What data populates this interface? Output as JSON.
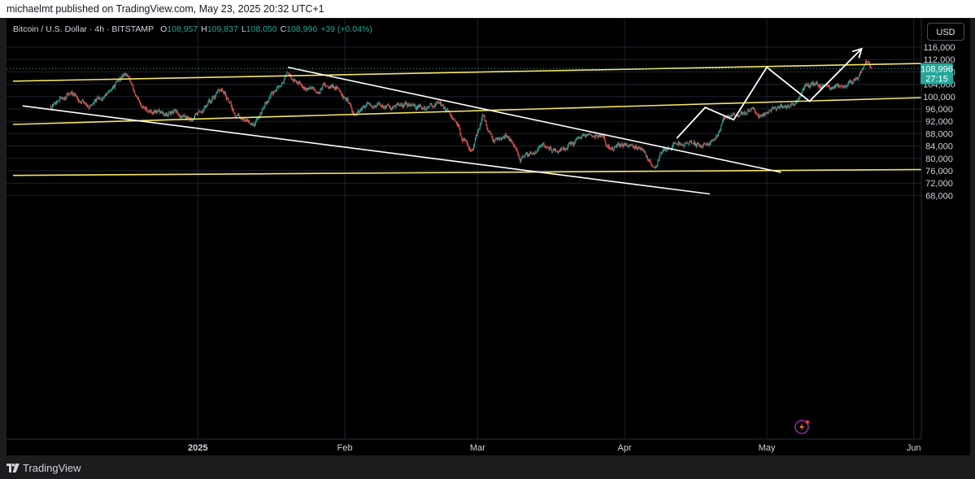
{
  "header": {
    "publisher_text": "michaelmt published on TradingView.com, May 23, 2025 20:32 UTC+1"
  },
  "legend": {
    "symbol": "Bitcoin / U.S. Dollar · 4h · BITSTAMP",
    "o_label": "O",
    "o_value": "108,957",
    "h_label": "H",
    "h_value": "109,837",
    "l_label": "L",
    "l_value": "108,050",
    "c_label": "C",
    "c_value": "108,996",
    "change": "+39 (+0.04%)"
  },
  "currency_button": "USD",
  "price_badge": {
    "price": "108,996",
    "countdown": "27:15"
  },
  "footer": {
    "brand": "TradingView"
  },
  "colors": {
    "up": "#26a69a",
    "down": "#ef5350",
    "trendline_yellow": "#f5e663",
    "trendline_white": "#ffffff",
    "badge": "#26a69a",
    "grid": "#1e222d"
  },
  "icons": {
    "brand_logo": "tradingview-logo-icon",
    "bolt": "bolt-icon"
  },
  "chart_data": {
    "type": "candlestick",
    "symbol": "BTCUSD",
    "timeframe": "4h",
    "y_ticks": [
      "116,000",
      "112,000",
      "108,000",
      "104,000",
      "100,000",
      "96,000",
      "92,000",
      "88,000",
      "84,000",
      "80,000",
      "76,000",
      "72,000",
      "68,000"
    ],
    "x_ticks": [
      "2025",
      "Feb",
      "Mar",
      "Apr",
      "May",
      "Jun"
    ],
    "ylim": [
      66000,
      118000
    ],
    "last_price": 108996,
    "price_path": [
      [
        "2024-12-01",
        97000
      ],
      [
        "2024-12-05",
        101500
      ],
      [
        "2024-12-09",
        97000
      ],
      [
        "2024-12-13",
        101000
      ],
      [
        "2024-12-17",
        107500
      ],
      [
        "2024-12-20",
        96000
      ],
      [
        "2024-12-24",
        95000
      ],
      [
        "2024-12-27",
        94500
      ],
      [
        "2024-12-31",
        93000
      ],
      [
        "2025-01-03",
        97500
      ],
      [
        "2025-01-06",
        102000
      ],
      [
        "2025-01-09",
        94000
      ],
      [
        "2025-01-13",
        91500
      ],
      [
        "2025-01-16",
        100000
      ],
      [
        "2025-01-20",
        107500
      ],
      [
        "2025-01-22",
        105000
      ],
      [
        "2025-01-26",
        102000
      ],
      [
        "2025-01-29",
        104500
      ],
      [
        "2025-02-01",
        100500
      ],
      [
        "2025-02-03",
        93500
      ],
      [
        "2025-02-06",
        97500
      ],
      [
        "2025-02-10",
        97000
      ],
      [
        "2025-02-14",
        97500
      ],
      [
        "2025-02-18",
        96000
      ],
      [
        "2025-02-21",
        98500
      ],
      [
        "2025-02-24",
        91500
      ],
      [
        "2025-02-26",
        86000
      ],
      [
        "2025-02-28",
        82500
      ],
      [
        "2025-03-02",
        94000
      ],
      [
        "2025-03-04",
        86000
      ],
      [
        "2025-03-07",
        88000
      ],
      [
        "2025-03-10",
        79500
      ],
      [
        "2025-03-14",
        84000
      ],
      [
        "2025-03-18",
        82500
      ],
      [
        "2025-03-21",
        84500
      ],
      [
        "2025-03-24",
        87000
      ],
      [
        "2025-03-27",
        87500
      ],
      [
        "2025-03-29",
        82500
      ],
      [
        "2025-04-02",
        85000
      ],
      [
        "2025-04-05",
        83000
      ],
      [
        "2025-04-07",
        76500
      ],
      [
        "2025-04-09",
        82500
      ],
      [
        "2025-04-12",
        85000
      ],
      [
        "2025-04-16",
        84500
      ],
      [
        "2025-04-20",
        85500
      ],
      [
        "2025-04-22",
        93000
      ],
      [
        "2025-04-26",
        95000
      ],
      [
        "2025-04-30",
        94500
      ],
      [
        "2025-05-03",
        96500
      ],
      [
        "2025-05-07",
        97000
      ],
      [
        "2025-05-09",
        103000
      ],
      [
        "2025-05-12",
        104000
      ],
      [
        "2025-05-15",
        103000
      ],
      [
        "2025-05-18",
        104500
      ],
      [
        "2025-05-20",
        106000
      ],
      [
        "2025-05-22",
        111500
      ],
      [
        "2025-05-23",
        108996
      ]
    ],
    "drawings": [
      {
        "name": "channel-top-yellow",
        "type": "trendline",
        "points": [
          [
            "2024-11-23",
            105000
          ],
          [
            "2025-06-12",
            111000
          ]
        ]
      },
      {
        "name": "channel-mid-yellow",
        "type": "trendline",
        "points": [
          [
            "2024-11-23",
            91000
          ],
          [
            "2025-06-10",
            100000
          ]
        ]
      },
      {
        "name": "channel-bottom-yellow",
        "type": "trendline",
        "points": [
          [
            "2024-11-23",
            74500
          ],
          [
            "2025-06-12",
            76500
          ]
        ]
      },
      {
        "name": "falling-wedge-upper-white",
        "type": "trendline",
        "points": [
          [
            "2025-01-20",
            109500
          ],
          [
            "2025-05-04",
            75500
          ]
        ]
      },
      {
        "name": "falling-wedge-lower-white",
        "type": "trendline",
        "points": [
          [
            "2024-11-25",
            97000
          ],
          [
            "2025-04-19",
            68500
          ]
        ]
      },
      {
        "name": "projection-zigzag-white",
        "type": "path",
        "points": [
          [
            "2025-04-12",
            86500
          ],
          [
            "2025-04-18",
            96500
          ],
          [
            "2025-04-24",
            92500
          ],
          [
            "2025-05-01",
            109500
          ],
          [
            "2025-05-10",
            98500
          ],
          [
            "2025-05-21",
            115500
          ]
        ]
      }
    ]
  }
}
